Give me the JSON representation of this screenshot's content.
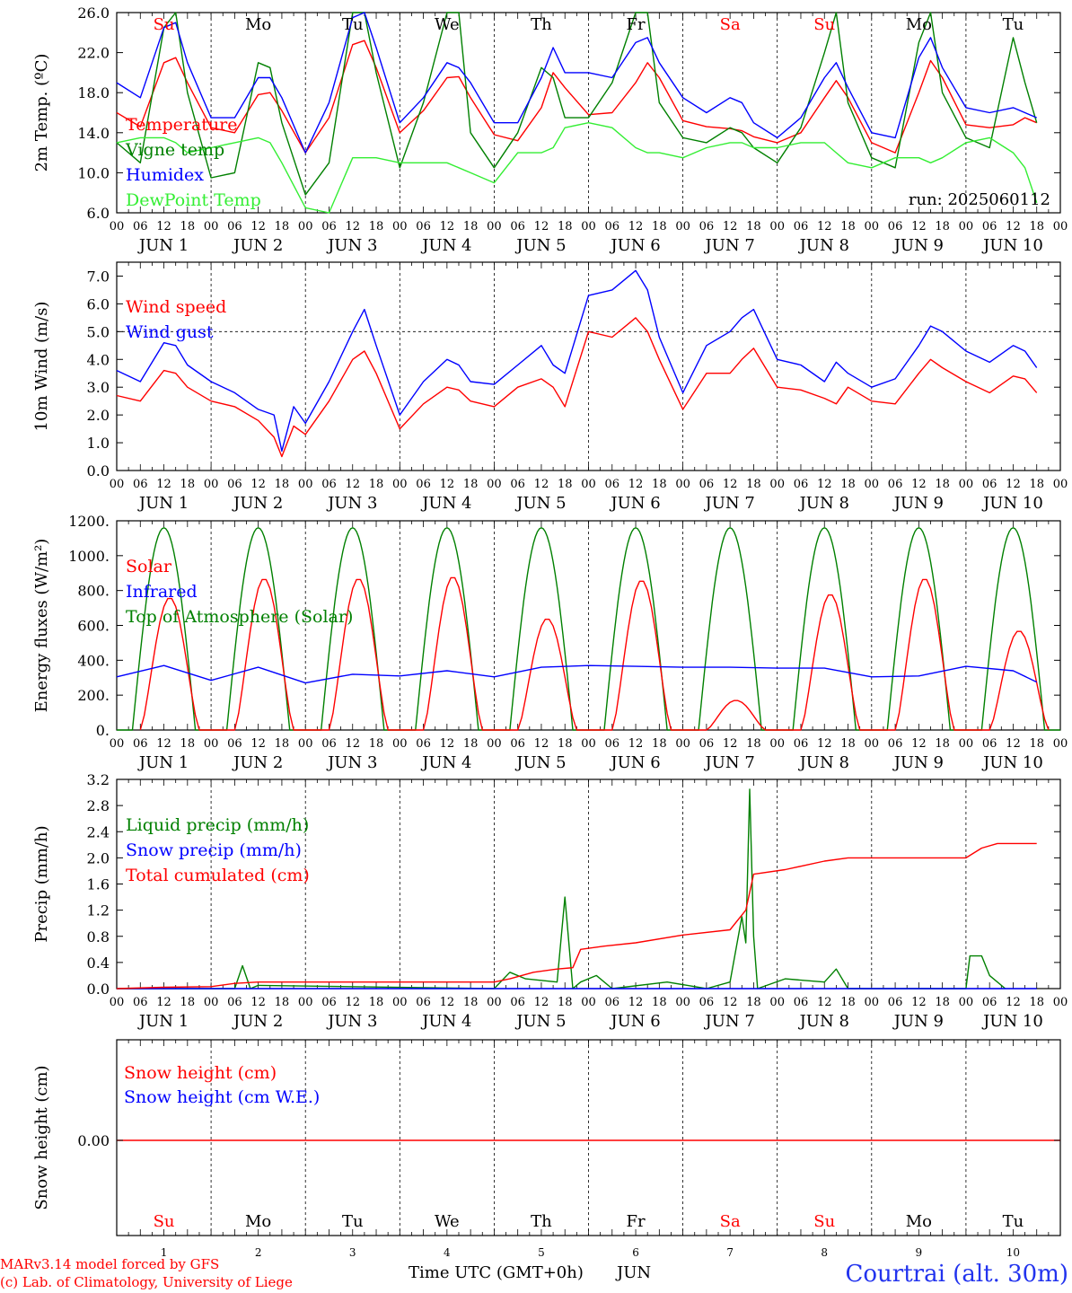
{
  "chart_data": [
    {
      "type": "line",
      "ylabel": "2m Temp. (ºC)",
      "ylim": [
        6.0,
        26.0
      ],
      "yticks": [
        "6.0",
        "10.0",
        "14.0",
        "18.0",
        "22.0",
        "26.0"
      ],
      "annotation": "run: 2025060112",
      "x_unit": "hours since JUN 1 00 UTC",
      "series": [
        {
          "name": "Temperature",
          "color": "#ff0000",
          "x": [
            0,
            6,
            12,
            15,
            18,
            24,
            30,
            36,
            39,
            42,
            48,
            54,
            60,
            63,
            66,
            72,
            78,
            84,
            87,
            90,
            96,
            102,
            108,
            111,
            114,
            120,
            126,
            132,
            135,
            138,
            144,
            150,
            156,
            159,
            162,
            168,
            174,
            180,
            183,
            186,
            192,
            198,
            204,
            207,
            210,
            216,
            222,
            228,
            231,
            234
          ],
          "y": [
            16.0,
            14.6,
            21.0,
            21.5,
            19.0,
            14.5,
            14.0,
            17.8,
            18.0,
            16.2,
            12.0,
            15.5,
            22.8,
            23.2,
            20.5,
            14.0,
            16.2,
            19.5,
            19.6,
            17.5,
            13.8,
            13.2,
            16.5,
            20.0,
            18.5,
            15.8,
            16.0,
            19.0,
            21.0,
            19.5,
            15.2,
            14.6,
            14.4,
            14.2,
            13.6,
            13.0,
            14.0,
            17.5,
            19.2,
            17.5,
            13.0,
            12.0,
            18.0,
            21.2,
            19.5,
            14.8,
            14.5,
            14.8,
            15.5,
            15.0
          ]
        },
        {
          "name": "Vigne temp",
          "color": "#008000",
          "x": [
            0,
            6,
            12,
            15,
            18,
            24,
            30,
            36,
            39,
            42,
            48,
            54,
            60,
            63,
            66,
            72,
            78,
            84,
            87,
            90,
            96,
            102,
            108,
            111,
            114,
            120,
            126,
            132,
            135,
            138,
            144,
            150,
            156,
            159,
            162,
            168,
            174,
            180,
            183,
            186,
            192,
            198,
            204,
            207,
            210,
            216,
            222,
            228,
            231,
            234
          ],
          "y": [
            13.0,
            11.0,
            24.5,
            26.0,
            18.0,
            9.5,
            10.0,
            21.0,
            20.5,
            15.0,
            7.8,
            11.0,
            26.0,
            26.0,
            20.0,
            10.5,
            17.0,
            26.0,
            26.0,
            14.0,
            10.5,
            14.0,
            20.5,
            19.5,
            15.5,
            15.5,
            19.0,
            26.0,
            26.0,
            17.0,
            13.5,
            13.0,
            14.5,
            14.0,
            12.5,
            11.0,
            14.5,
            22.0,
            26.0,
            17.0,
            11.5,
            10.5,
            23.0,
            26.0,
            18.0,
            13.5,
            12.5,
            23.5,
            19.0,
            15.0
          ]
        },
        {
          "name": "Humidex",
          "color": "#0000ff",
          "x": [
            0,
            6,
            12,
            15,
            18,
            24,
            30,
            36,
            39,
            42,
            48,
            54,
            60,
            63,
            66,
            72,
            78,
            84,
            87,
            90,
            96,
            102,
            108,
            111,
            114,
            120,
            126,
            132,
            135,
            138,
            144,
            150,
            156,
            159,
            162,
            168,
            174,
            180,
            183,
            186,
            192,
            198,
            204,
            207,
            210,
            216,
            222,
            228,
            231,
            234
          ],
          "y": [
            19.0,
            17.5,
            24.5,
            25.0,
            21.0,
            15.5,
            15.5,
            19.5,
            19.5,
            17.5,
            12.0,
            17.0,
            25.5,
            26.0,
            22.5,
            15.0,
            17.5,
            21.0,
            20.5,
            19.0,
            15.0,
            15.0,
            19.5,
            22.5,
            20.0,
            20.0,
            19.5,
            23.0,
            23.5,
            21.0,
            17.5,
            16.0,
            17.5,
            17.0,
            15.0,
            13.5,
            15.5,
            19.5,
            21.0,
            18.5,
            14.0,
            13.5,
            21.5,
            23.5,
            20.5,
            16.5,
            16.0,
            16.5,
            16.0,
            15.5
          ]
        },
        {
          "name": "DewPoint Temp",
          "color": "#33ee33",
          "x": [
            0,
            6,
            12,
            15,
            18,
            24,
            30,
            36,
            39,
            42,
            48,
            54,
            60,
            63,
            66,
            72,
            78,
            84,
            87,
            90,
            96,
            102,
            108,
            111,
            114,
            120,
            126,
            132,
            135,
            138,
            144,
            150,
            156,
            159,
            162,
            168,
            174,
            180,
            183,
            186,
            192,
            198,
            204,
            207,
            210,
            216,
            222,
            228,
            231,
            234
          ],
          "y": [
            13.0,
            13.5,
            13.5,
            13.0,
            12.0,
            12.5,
            13.0,
            13.5,
            13.0,
            11.0,
            6.5,
            6.0,
            11.5,
            11.5,
            11.5,
            11.0,
            11.0,
            11.0,
            10.5,
            10.0,
            9.0,
            12.0,
            12.0,
            12.5,
            14.5,
            15.0,
            14.5,
            12.5,
            12.0,
            12.0,
            11.5,
            12.5,
            13.0,
            13.0,
            12.5,
            12.5,
            13.0,
            13.0,
            12.0,
            11.0,
            10.5,
            11.5,
            11.5,
            11.0,
            11.5,
            13.0,
            13.5,
            12.0,
            10.5,
            7.0
          ]
        }
      ]
    },
    {
      "type": "line",
      "ylabel": "10m Wind (m/s)",
      "ylim": [
        0.0,
        7.5
      ],
      "yticks": [
        "0.0",
        "1.0",
        "2.0",
        "3.0",
        "4.0",
        "5.0",
        "6.0",
        "7.0"
      ],
      "reference_line": 5.0,
      "series": [
        {
          "name": "Wind speed",
          "color": "#ff0000",
          "x": [
            0,
            6,
            12,
            15,
            18,
            24,
            30,
            36,
            40,
            42,
            45,
            48,
            54,
            60,
            63,
            66,
            72,
            78,
            84,
            87,
            90,
            96,
            102,
            108,
            111,
            114,
            120,
            126,
            132,
            135,
            138,
            144,
            150,
            156,
            159,
            162,
            168,
            174,
            180,
            183,
            186,
            192,
            198,
            204,
            207,
            210,
            216,
            222,
            228,
            231,
            234
          ],
          "y": [
            2.7,
            2.5,
            3.6,
            3.5,
            3.0,
            2.5,
            2.3,
            1.8,
            1.2,
            0.5,
            1.6,
            1.3,
            2.5,
            4.0,
            4.3,
            3.5,
            1.5,
            2.4,
            3.0,
            2.9,
            2.5,
            2.3,
            3.0,
            3.3,
            3.0,
            2.3,
            5.0,
            4.8,
            5.5,
            5.0,
            4.0,
            2.2,
            3.5,
            3.5,
            4.0,
            4.4,
            3.0,
            2.9,
            2.6,
            2.4,
            3.0,
            2.5,
            2.4,
            3.5,
            4.0,
            3.7,
            3.2,
            2.8,
            3.4,
            3.3,
            2.8
          ]
        },
        {
          "name": "Wind gust",
          "color": "#0000ff",
          "x": [
            0,
            6,
            12,
            15,
            18,
            24,
            30,
            36,
            40,
            42,
            45,
            48,
            54,
            60,
            63,
            66,
            72,
            78,
            84,
            87,
            90,
            96,
            102,
            108,
            111,
            114,
            120,
            126,
            132,
            135,
            138,
            144,
            150,
            156,
            159,
            162,
            168,
            174,
            180,
            183,
            186,
            192,
            198,
            204,
            207,
            210,
            216,
            222,
            228,
            231,
            234
          ],
          "y": [
            3.6,
            3.2,
            4.6,
            4.5,
            3.8,
            3.2,
            2.8,
            2.2,
            2.0,
            0.7,
            2.3,
            1.7,
            3.2,
            5.0,
            5.8,
            4.5,
            2.0,
            3.2,
            4.0,
            3.8,
            3.2,
            3.1,
            3.8,
            4.5,
            3.8,
            3.5,
            6.3,
            6.5,
            7.2,
            6.5,
            4.8,
            2.8,
            4.5,
            5.0,
            5.5,
            5.8,
            4.0,
            3.8,
            3.2,
            3.9,
            3.5,
            3.0,
            3.3,
            4.5,
            5.2,
            5.0,
            4.3,
            3.9,
            4.5,
            4.3,
            3.7
          ]
        }
      ]
    },
    {
      "type": "line",
      "ylabel": "Energy fluxes (W/m²)",
      "ylim": [
        0,
        1200
      ],
      "yticks": [
        "0.",
        "200.",
        "400.",
        "600.",
        "800.",
        "1000.",
        "1200."
      ],
      "series": [
        {
          "name": "Solar",
          "color": "#ff0000",
          "peaks": [
            [
              13,
              760
            ],
            [
              37,
              870
            ],
            [
              61,
              870
            ],
            [
              85,
              880
            ],
            [
              109,
              640
            ],
            [
              133,
              860
            ],
            [
              157,
              170
            ],
            [
              181,
              780
            ],
            [
              205,
              870
            ],
            [
              229,
              570
            ]
          ]
        },
        {
          "name": "Infrared",
          "color": "#0000ff",
          "x": [
            0,
            12,
            24,
            36,
            48,
            60,
            72,
            84,
            96,
            108,
            120,
            132,
            144,
            156,
            168,
            180,
            192,
            204,
            216,
            228,
            234
          ],
          "y": [
            305,
            370,
            285,
            360,
            270,
            320,
            310,
            340,
            305,
            360,
            370,
            365,
            360,
            360,
            355,
            355,
            305,
            310,
            365,
            340,
            275
          ]
        },
        {
          "name": "Top of Atmosphere (Solar)",
          "color": "#008000",
          "peak": 1160
        }
      ]
    },
    {
      "type": "line",
      "ylabel": "Precip (mm/h)",
      "ylim": [
        0.0,
        3.2
      ],
      "yticks": [
        "0.0",
        "0.4",
        "0.8",
        "1.2",
        "1.6",
        "2.0",
        "2.4",
        "2.8",
        "3.2"
      ],
      "series": [
        {
          "name": "Liquid precip (mm/h)",
          "color": "#008000",
          "x": [
            0,
            30,
            32,
            34,
            36,
            96,
            100,
            104,
            112,
            114,
            116,
            118,
            122,
            126,
            140,
            150,
            156,
            159,
            160,
            161,
            162,
            163,
            170,
            180,
            183,
            186,
            216,
            217,
            220,
            222,
            226
          ],
          "y": [
            0,
            0,
            0.35,
            0,
            0.05,
            0,
            0.25,
            0.15,
            0.1,
            1.4,
            0,
            0.1,
            0.2,
            0,
            0.1,
            0,
            0.1,
            1.1,
            0.7,
            3.05,
            0.8,
            0,
            0.15,
            0.1,
            0.3,
            0,
            0,
            0.5,
            0.5,
            0.2,
            0
          ]
        },
        {
          "name": "Snow precip (mm/h)",
          "color": "#0000ff",
          "x": [
            0,
            234
          ],
          "y": [
            0,
            0
          ]
        },
        {
          "name": "Total cumulated (cm)",
          "color": "#ff0000",
          "x": [
            0,
            12,
            24,
            30,
            36,
            96,
            100,
            106,
            112,
            116,
            118,
            124,
            132,
            144,
            156,
            160,
            162,
            170,
            180,
            186,
            216,
            220,
            224,
            234
          ],
          "y": [
            0,
            0.02,
            0.03,
            0.08,
            0.1,
            0.1,
            0.15,
            0.25,
            0.3,
            0.32,
            0.6,
            0.65,
            0.7,
            0.82,
            0.9,
            1.2,
            1.75,
            1.82,
            1.95,
            2.0,
            2.0,
            2.15,
            2.22,
            2.22
          ]
        }
      ]
    },
    {
      "type": "line",
      "ylabel": "Snow height (cm)",
      "ytick": "0.00",
      "series": [
        {
          "name": "Snow height (cm)",
          "color": "#ff0000",
          "x": [
            0,
            234
          ],
          "y": [
            0,
            0
          ]
        },
        {
          "name": "Snow height (cm W.E.)",
          "color": "#0000ff"
        }
      ]
    }
  ],
  "time_axis": {
    "hour_labels": [
      "00",
      "06",
      "12",
      "18"
    ],
    "date_labels": [
      "JUN  1",
      "JUN  2",
      "JUN  3",
      "JUN  4",
      "JUN  5",
      "JUN  6",
      "JUN  7",
      "JUN  8",
      "JUN  9",
      "JUN 10"
    ],
    "last_hour_label": "00",
    "day_numbers": [
      "1",
      "2",
      "3",
      "4",
      "5",
      "6",
      "7",
      "8",
      "9",
      "10"
    ],
    "weekdays": [
      {
        "label": "Su",
        "color": "#ff0000"
      },
      {
        "label": "Mo",
        "color": "#000000"
      },
      {
        "label": "Tu",
        "color": "#000000"
      },
      {
        "label": "We",
        "color": "#000000"
      },
      {
        "label": "Th",
        "color": "#000000"
      },
      {
        "label": "Fr",
        "color": "#000000"
      },
      {
        "label": "Sa",
        "color": "#ff0000"
      },
      {
        "label": "Su",
        "color": "#ff0000"
      },
      {
        "label": "Mo",
        "color": "#000000"
      },
      {
        "label": "Tu",
        "color": "#000000"
      }
    ],
    "xlabel": "Time UTC (GMT+0h)",
    "month": "JUN"
  },
  "footer": {
    "credit_line1": "MARv3.14 model forced by GFS",
    "credit_line2": "(c) Lab. of Climatology, University of Liege",
    "station": "Courtrai (alt. 30m)"
  }
}
